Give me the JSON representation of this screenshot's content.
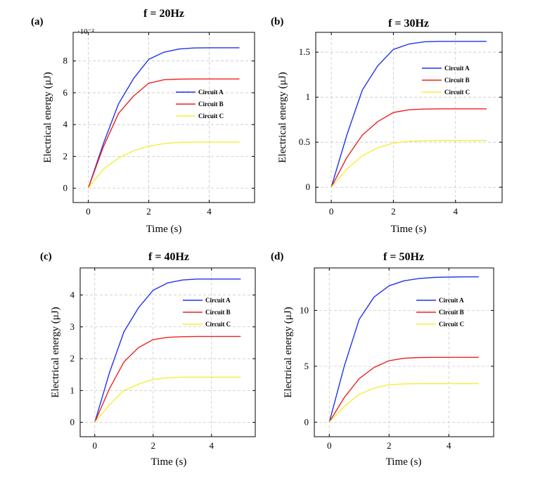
{
  "chart_data": [
    {
      "type": "line",
      "panel_label": "(a)",
      "title": "f = 20Hz",
      "xlabel": "Time (s)",
      "ylabel": "Electrical energy (μJ)",
      "exponent_label": "·10⁻²",
      "xlim": [
        -0.5,
        5.5
      ],
      "ylim": [
        -0.9,
        9.8
      ],
      "xticks": [
        0,
        2,
        4
      ],
      "xtick_labels": [
        "0",
        "2",
        "4"
      ],
      "yticks": [
        0,
        2,
        4,
        6,
        8
      ],
      "ytick_labels": [
        "0",
        "2",
        "4",
        "6",
        "8"
      ],
      "grid": true,
      "legend_position": "center-right",
      "x": [
        0,
        0.5,
        1,
        1.5,
        2,
        2.5,
        3,
        3.5,
        4,
        4.5,
        5
      ],
      "series": [
        {
          "name": "Circuit A",
          "color": "#2233ee",
          "values": [
            0,
            2.8,
            5.3,
            6.9,
            8.1,
            8.55,
            8.75,
            8.82,
            8.83,
            8.83,
            8.83
          ]
        },
        {
          "name": "Circuit B",
          "color": "#ee2222",
          "values": [
            0,
            2.6,
            4.7,
            5.8,
            6.6,
            6.82,
            6.86,
            6.87,
            6.87,
            6.87,
            6.87
          ]
        },
        {
          "name": "Circuit C",
          "color": "#f5ee3a",
          "values": [
            0,
            1.2,
            1.9,
            2.35,
            2.65,
            2.8,
            2.88,
            2.9,
            2.9,
            2.9,
            2.9
          ]
        }
      ]
    },
    {
      "type": "line",
      "panel_label": "(b)",
      "title": "f = 30Hz",
      "xlabel": "Time (s)",
      "ylabel": "Electrical energy (μJ)",
      "xlim": [
        -0.5,
        5.5
      ],
      "ylim": [
        -0.17,
        1.72
      ],
      "xticks": [
        0,
        2,
        4
      ],
      "xtick_labels": [
        "0",
        "2",
        "4"
      ],
      "yticks": [
        0,
        0.5,
        1,
        1.5
      ],
      "ytick_labels": [
        "0",
        "0.5",
        "1",
        "1.5"
      ],
      "grid": true,
      "legend_position": "top-right",
      "x": [
        0,
        0.5,
        1,
        1.5,
        2,
        2.5,
        3,
        3.5,
        4,
        4.5,
        5
      ],
      "series": [
        {
          "name": "Circuit A",
          "color": "#2233ee",
          "values": [
            0,
            0.58,
            1.08,
            1.35,
            1.53,
            1.59,
            1.615,
            1.62,
            1.62,
            1.62,
            1.62
          ]
        },
        {
          "name": "Circuit B",
          "color": "#ee2222",
          "values": [
            0,
            0.33,
            0.58,
            0.73,
            0.83,
            0.86,
            0.868,
            0.87,
            0.87,
            0.87,
            0.87
          ]
        },
        {
          "name": "Circuit C",
          "color": "#f5ee3a",
          "values": [
            0,
            0.2,
            0.35,
            0.44,
            0.49,
            0.51,
            0.515,
            0.52,
            0.52,
            0.52,
            0.52
          ]
        }
      ]
    },
    {
      "type": "line",
      "panel_label": "(c)",
      "title": "f = 40Hz",
      "xlabel": "Time (s)",
      "ylabel": "Electrical energy (μJ)",
      "xlim": [
        -0.5,
        5.5
      ],
      "ylim": [
        -0.45,
        4.85
      ],
      "xticks": [
        0,
        2,
        4
      ],
      "xtick_labels": [
        "0",
        "2",
        "4"
      ],
      "yticks": [
        0,
        1,
        2,
        3,
        4
      ],
      "ytick_labels": [
        "0",
        "1",
        "2",
        "3",
        "4"
      ],
      "grid": true,
      "legend_position": "top-right",
      "x": [
        0,
        0.5,
        1,
        1.5,
        2,
        2.5,
        3,
        3.5,
        4,
        4.5,
        5
      ],
      "series": [
        {
          "name": "Circuit A",
          "color": "#2233ee",
          "values": [
            0,
            1.55,
            2.85,
            3.6,
            4.15,
            4.38,
            4.47,
            4.5,
            4.5,
            4.5,
            4.5
          ]
        },
        {
          "name": "Circuit B",
          "color": "#ee2222",
          "values": [
            0,
            1.05,
            1.9,
            2.35,
            2.6,
            2.67,
            2.69,
            2.7,
            2.7,
            2.7,
            2.7
          ]
        },
        {
          "name": "Circuit C",
          "color": "#f5ee3a",
          "values": [
            0,
            0.55,
            1.0,
            1.2,
            1.35,
            1.4,
            1.42,
            1.42,
            1.42,
            1.42,
            1.42
          ]
        }
      ]
    },
    {
      "type": "line",
      "panel_label": "(d)",
      "title": "f = 50Hz",
      "xlabel": "Time (s)",
      "ylabel": "Electrical energy (μJ)",
      "xlim": [
        -0.5,
        5.5
      ],
      "ylim": [
        -1.3,
        13.8
      ],
      "xticks": [
        0,
        2,
        4
      ],
      "xtick_labels": [
        "0",
        "2",
        "4"
      ],
      "yticks": [
        0,
        5,
        10
      ],
      "ytick_labels": [
        "0",
        "5",
        "10"
      ],
      "grid": true,
      "legend_position": "top-right",
      "x": [
        0,
        0.5,
        1,
        1.5,
        2,
        2.5,
        3,
        3.5,
        4,
        4.5,
        5
      ],
      "series": [
        {
          "name": "Circuit A",
          "color": "#2233ee",
          "values": [
            0,
            5.0,
            9.2,
            11.2,
            12.2,
            12.65,
            12.85,
            12.95,
            12.98,
            13.0,
            13.0
          ]
        },
        {
          "name": "Circuit B",
          "color": "#ee2222",
          "values": [
            0,
            2.2,
            3.9,
            4.9,
            5.5,
            5.72,
            5.78,
            5.8,
            5.8,
            5.8,
            5.8
          ]
        },
        {
          "name": "Circuit C",
          "color": "#f5ee3a",
          "values": [
            0,
            1.4,
            2.5,
            3.05,
            3.35,
            3.42,
            3.45,
            3.45,
            3.45,
            3.45,
            3.45
          ]
        }
      ]
    }
  ]
}
